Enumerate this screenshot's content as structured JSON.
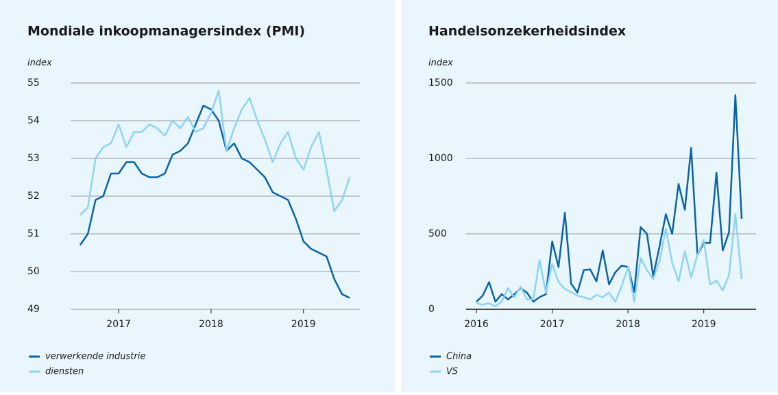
{
  "chart_data": [
    {
      "type": "line",
      "title": "Mondiale inkoopmanagersindex (PMI)",
      "y_label": "index",
      "x": [
        2016.583,
        2016.667,
        2016.75,
        2016.833,
        2016.917,
        2017,
        2017.083,
        2017.167,
        2017.25,
        2017.333,
        2017.417,
        2017.5,
        2017.583,
        2017.667,
        2017.75,
        2017.833,
        2017.917,
        2018,
        2018.083,
        2018.167,
        2018.25,
        2018.333,
        2018.417,
        2018.5,
        2018.583,
        2018.667,
        2018.75,
        2018.833,
        2018.917,
        2019,
        2019.083,
        2019.167,
        2019.25,
        2019.333,
        2019.417,
        2019.5
      ],
      "series": [
        {
          "name": "verwerkende industrie",
          "color": "#0b63a6",
          "values": [
            50.7,
            51.0,
            51.9,
            52.0,
            52.6,
            52.6,
            52.9,
            52.9,
            52.6,
            52.5,
            52.5,
            52.6,
            53.1,
            53.2,
            53.4,
            53.9,
            54.4,
            54.3,
            54.0,
            53.2,
            53.4,
            53.0,
            52.9,
            52.7,
            52.5,
            52.1,
            52.0,
            51.9,
            51.4,
            50.8,
            50.6,
            50.5,
            50.4,
            49.8,
            49.4,
            49.3
          ]
        },
        {
          "name": "diensten",
          "color": "#8ed3f4",
          "values": [
            51.5,
            51.7,
            53.0,
            53.3,
            53.4,
            53.9,
            53.3,
            53.7,
            53.7,
            53.9,
            53.8,
            53.6,
            54.0,
            53.8,
            54.1,
            53.7,
            53.8,
            54.2,
            54.8,
            53.2,
            53.8,
            54.3,
            54.6,
            54.0,
            53.5,
            52.9,
            53.4,
            53.7,
            53.0,
            52.7,
            53.3,
            53.7,
            52.7,
            51.6,
            51.9,
            52.5
          ]
        }
      ],
      "xlim": [
        2016.48,
        2019.61
      ],
      "xticks": [
        2017,
        2018,
        2019
      ],
      "ylim": [
        49,
        55
      ],
      "yticks": [
        49,
        50,
        51,
        52,
        53,
        54,
        55
      ],
      "grid": true
    },
    {
      "type": "line",
      "title": "Handelsonzekerheidsindex",
      "y_label": "index",
      "x": [
        2016,
        2016.083,
        2016.167,
        2016.25,
        2016.333,
        2016.417,
        2016.5,
        2016.583,
        2016.667,
        2016.75,
        2016.833,
        2016.917,
        2017,
        2017.083,
        2017.167,
        2017.25,
        2017.333,
        2017.417,
        2017.5,
        2017.583,
        2017.667,
        2017.75,
        2017.833,
        2017.917,
        2018,
        2018.083,
        2018.167,
        2018.25,
        2018.333,
        2018.417,
        2018.5,
        2018.583,
        2018.667,
        2018.75,
        2018.833,
        2018.917,
        2019,
        2019.083,
        2019.167,
        2019.25,
        2019.333,
        2019.417,
        2019.5
      ],
      "series": [
        {
          "name": "China",
          "color": "#0b63a6",
          "values": [
            50,
            90,
            180,
            50,
            100,
            65,
            100,
            140,
            110,
            50,
            80,
            100,
            450,
            280,
            640,
            170,
            110,
            260,
            265,
            185,
            390,
            165,
            245,
            290,
            280,
            115,
            545,
            500,
            220,
            420,
            630,
            500,
            830,
            660,
            1070,
            360,
            440,
            440,
            905,
            390,
            510,
            1420,
            600
          ]
        },
        {
          "name": "VS",
          "color": "#8ed3f4",
          "values": [
            40,
            30,
            40,
            20,
            50,
            140,
            80,
            150,
            65,
            65,
            325,
            110,
            300,
            180,
            135,
            115,
            90,
            80,
            65,
            95,
            80,
            110,
            50,
            155,
            280,
            50,
            340,
            260,
            200,
            320,
            535,
            310,
            185,
            385,
            210,
            360,
            460,
            165,
            190,
            125,
            225,
            630,
            200
          ]
        }
      ],
      "xlim": [
        2015.864,
        2019.69
      ],
      "xticks": [
        2016,
        2017,
        2018,
        2019
      ],
      "ylim": [
        0,
        1500
      ],
      "yticks": [
        0,
        500,
        1000,
        1500
      ],
      "grid": true
    }
  ]
}
